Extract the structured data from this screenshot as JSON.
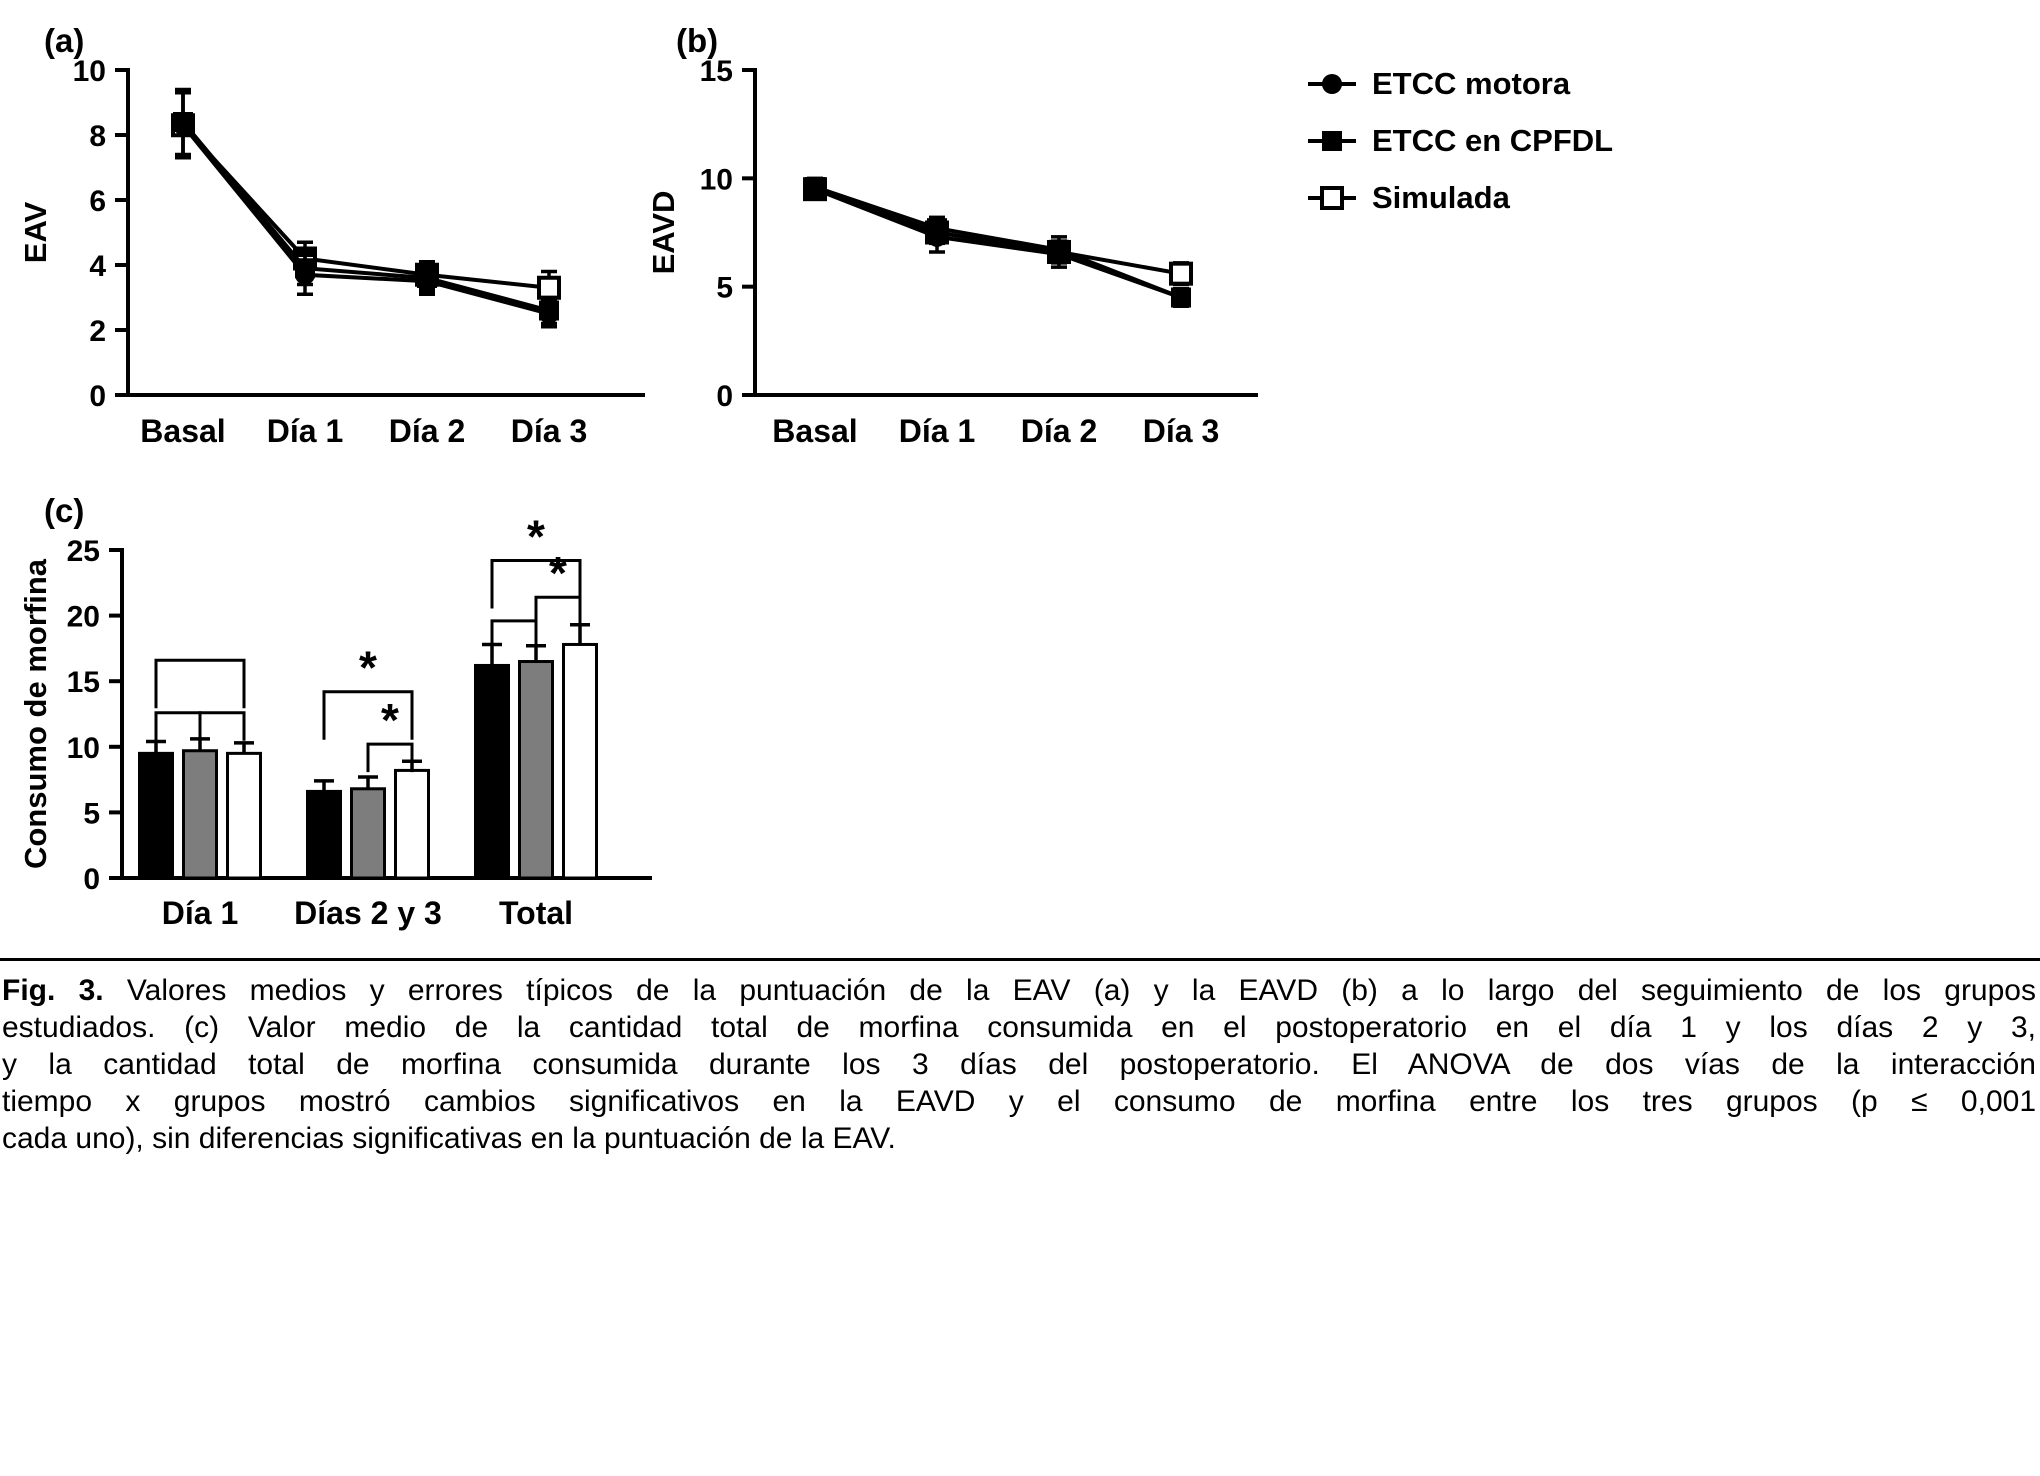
{
  "figure": {
    "panel_a_label": "(a)",
    "panel_b_label": "(b)",
    "panel_c_label": "(c)"
  },
  "legend": {
    "items": [
      {
        "label": "ETCC motora",
        "marker": "filled-circle"
      },
      {
        "label": "ETCC en CPFDL",
        "marker": "filled-square"
      },
      {
        "label": "Simulada",
        "marker": "open-square"
      }
    ]
  },
  "chart_data": [
    {
      "id": "a",
      "type": "line",
      "title": "",
      "xlabel": "",
      "ylabel": "EAV",
      "categories": [
        "Basal",
        "Día 1",
        "Día 2",
        "Día 3"
      ],
      "ylim": [
        0,
        10
      ],
      "yticks": [
        0,
        2,
        4,
        6,
        8,
        10
      ],
      "grid": false,
      "series": [
        {
          "name": "ETCC motora",
          "marker": "filled-circle",
          "values": [
            8.3,
            3.7,
            3.5,
            2.5
          ],
          "errors": [
            1.0,
            0.6,
            0.4,
            0.4
          ]
        },
        {
          "name": "ETCC en CPFDL",
          "marker": "filled-square",
          "values": [
            8.4,
            3.9,
            3.6,
            2.6
          ],
          "errors": [
            1.0,
            0.5,
            0.4,
            0.4
          ]
        },
        {
          "name": "Simulada",
          "marker": "open-square",
          "values": [
            8.3,
            4.2,
            3.7,
            3.3
          ],
          "errors": [
            1.0,
            0.5,
            0.4,
            0.5
          ]
        }
      ]
    },
    {
      "id": "b",
      "type": "line",
      "title": "",
      "xlabel": "",
      "ylabel": "EAVD",
      "categories": [
        "Basal",
        "Día 1",
        "Día 2",
        "Día 3"
      ],
      "ylim": [
        0,
        15
      ],
      "yticks": [
        0,
        5,
        10,
        15
      ],
      "grid": false,
      "series": [
        {
          "name": "ETCC motora",
          "marker": "filled-circle",
          "values": [
            9.5,
            7.3,
            6.5,
            4.5
          ],
          "errors": [
            0.4,
            0.7,
            0.6,
            0.4
          ]
        },
        {
          "name": "ETCC en CPFDL",
          "marker": "filled-square",
          "values": [
            9.6,
            7.7,
            6.7,
            4.5
          ],
          "errors": [
            0.4,
            0.5,
            0.6,
            0.4
          ]
        },
        {
          "name": "Simulada",
          "marker": "open-square",
          "values": [
            9.5,
            7.5,
            6.6,
            5.6
          ],
          "errors": [
            0.4,
            0.5,
            0.5,
            0.5
          ]
        }
      ]
    },
    {
      "id": "c",
      "type": "bar",
      "title": "",
      "xlabel": "",
      "ylabel": "Consumo de morfina",
      "categories": [
        "Día 1",
        "Días 2 y 3",
        "Total"
      ],
      "ylim": [
        0,
        25
      ],
      "yticks": [
        0,
        5,
        10,
        15,
        20,
        25
      ],
      "grid": false,
      "series": [
        {
          "name": "ETCC motora",
          "fill": "#000000",
          "values": [
            9.5,
            6.6,
            16.2
          ],
          "errors": [
            0.9,
            0.8,
            1.6
          ]
        },
        {
          "name": "ETCC en CPFDL",
          "fill": "#7d7d7d",
          "values": [
            9.7,
            6.8,
            16.5
          ],
          "errors": [
            0.9,
            0.9,
            1.2
          ]
        },
        {
          "name": "Simulada",
          "fill": "#ffffff",
          "values": [
            9.5,
            8.2,
            17.8
          ],
          "errors": [
            0.8,
            0.7,
            1.5
          ]
        }
      ],
      "significance": [
        {
          "group": 0,
          "from": 0,
          "to": 2,
          "y": 16.6,
          "star": false
        },
        {
          "group": 0,
          "from": 0,
          "to": 1,
          "y": 12.6,
          "star": false
        },
        {
          "group": 0,
          "from": 1,
          "to": 2,
          "y": 12.6,
          "star": false
        },
        {
          "group": 1,
          "from": 0,
          "to": 2,
          "y": 14.2,
          "star": true
        },
        {
          "group": 1,
          "from": 1,
          "to": 2,
          "y": 10.2,
          "star": true
        },
        {
          "group": 2,
          "from": 0,
          "to": 2,
          "y": 24.2,
          "star": true
        },
        {
          "group": 2,
          "from": 0,
          "to": 1,
          "y": 19.6,
          "star": false
        },
        {
          "group": 2,
          "from": 1,
          "to": 2,
          "y": 21.4,
          "star": true
        }
      ]
    }
  ],
  "caption": {
    "bold_prefix": "Fig. 3.",
    "lines": [
      "Valores medios y errores típicos de la puntuación de la EAV (a) y la EAVD (b) a lo largo del seguimiento de los grupos",
      "estudiados. (c) Valor medio de la cantidad total de morfina consumida en el postoperatorio en el día 1 y los días 2 y 3,",
      "y la cantidad total de morfina consumida durante los 3 días del postoperatorio. El ANOVA de dos vías de la interacción",
      "tiempo x grupos mostró cambios significativos en la EAVD y el consumo de morfina entre los tres grupos (p ≤ 0,001",
      "cada uno), sin diferencias significativas en la puntuación de la EAV."
    ]
  }
}
